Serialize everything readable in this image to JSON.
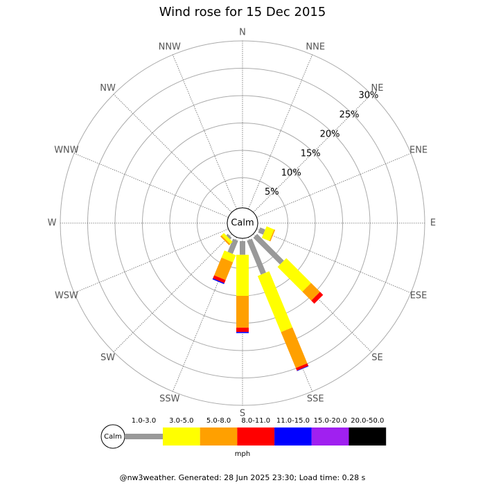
{
  "chart_data": {
    "type": "windrose",
    "title": "Wind rose for 15 Dec 2015",
    "directions": [
      "N",
      "NNE",
      "NE",
      "ENE",
      "E",
      "ESE",
      "SE",
      "SSE",
      "S",
      "SSW",
      "SW",
      "WSW",
      "W",
      "WNW",
      "NW",
      "NNW"
    ],
    "series": [
      {
        "name": "1.0-3.0",
        "color": "#999999",
        "values": [
          0,
          0,
          0,
          0,
          0,
          1.0,
          6.9,
          6.7,
          2.5,
          2.6,
          0.4,
          0,
          0,
          0,
          0,
          0
        ]
      },
      {
        "name": "3.0-5.0",
        "color": "#ffff00",
        "values": [
          0,
          0,
          0,
          0,
          0,
          1.5,
          6.4,
          11.1,
          7.5,
          1.4,
          0.6,
          0,
          0,
          0,
          0,
          0
        ]
      },
      {
        "name": "5.0-8.0",
        "color": "#ffa000",
        "values": [
          0,
          0,
          0,
          0,
          0,
          0.2,
          2.3,
          7.1,
          5.8,
          3.5,
          0.3,
          0,
          0,
          0,
          0,
          0
        ]
      },
      {
        "name": "8.0-11.0",
        "color": "#ff0000",
        "values": [
          0,
          0,
          0,
          0,
          0,
          0,
          0.8,
          0.5,
          0.8,
          0.6,
          0,
          0,
          0,
          0,
          0,
          0
        ]
      },
      {
        "name": "11.0-15.0",
        "color": "#0000ff",
        "values": [
          0,
          0,
          0,
          0,
          0,
          0,
          0,
          0.1,
          0.2,
          0.2,
          0,
          0,
          0,
          0,
          0,
          0
        ]
      },
      {
        "name": "15.0-20.0",
        "color": "#a020f0",
        "values": [
          0,
          0,
          0,
          0,
          0,
          0,
          0,
          0,
          0,
          0,
          0,
          0,
          0,
          0,
          0,
          0
        ]
      },
      {
        "name": "20.0-50.0",
        "color": "#000000",
        "values": [
          0,
          0,
          0,
          0,
          0,
          0,
          0,
          0,
          0,
          0,
          0,
          0,
          0,
          0,
          0,
          0
        ]
      }
    ],
    "rlim": [
      0,
      30
    ],
    "rticks": [
      {
        "value": 5,
        "label": "5%"
      },
      {
        "value": 10,
        "label": "10%"
      },
      {
        "value": 15,
        "label": "15%"
      },
      {
        "value": 20,
        "label": "20%"
      },
      {
        "value": 25,
        "label": "25%"
      },
      {
        "value": 30,
        "label": "30%"
      }
    ],
    "calm_label": "Calm",
    "units": "mph",
    "footer": "@nw3weather. Generated: 28 Jun 2025 23:30; Load time: 0.28 s"
  }
}
